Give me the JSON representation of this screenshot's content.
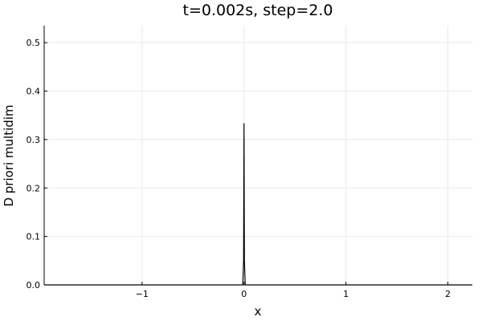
{
  "chart_data": {
    "type": "line",
    "title": "t=0.002s,   step=2.0",
    "xlabel": "x",
    "ylabel": "D priori multidim",
    "xlim": [
      -1.96,
      2.24
    ],
    "ylim": [
      0,
      0.535
    ],
    "xticks": [
      -1,
      0,
      1,
      2
    ],
    "xtick_labels": [
      "−1",
      "0",
      "1",
      "2"
    ],
    "yticks": [
      0,
      0.1,
      0.2,
      0.3,
      0.4,
      0.5
    ],
    "ytick_labels": [
      "0.0",
      "0.1",
      "0.2",
      "0.3",
      "0.4",
      "0.5"
    ],
    "grid": true,
    "legend": "none",
    "series": [
      {
        "name": "D priori multidim",
        "color": "#000000",
        "x": [
          -1.96,
          -0.012,
          -0.004,
          0.0,
          0.004,
          0.012,
          2.24
        ],
        "y": [
          0,
          0,
          0.05,
          0.333,
          0.05,
          0,
          0
        ]
      }
    ]
  }
}
